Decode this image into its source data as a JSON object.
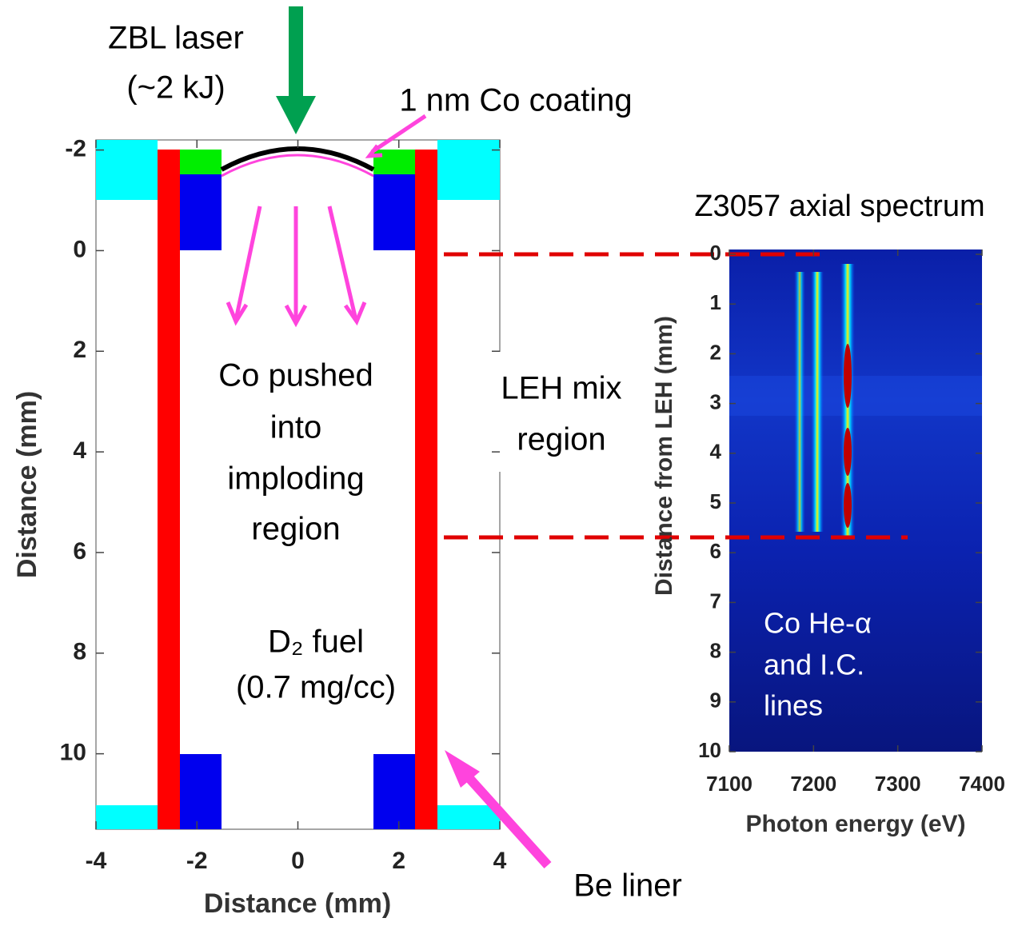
{
  "left_panel": {
    "xlabel": "Distance (mm)",
    "ylabel": "Distance (mm)",
    "xlim": [
      -4,
      4
    ],
    "ylim": [
      -2.2,
      11.5
    ],
    "xticks": [
      -4,
      -2,
      0,
      2,
      4
    ],
    "yticks": [
      -2,
      0,
      2,
      4,
      6,
      8,
      10
    ],
    "laser": [
      "ZBL laser",
      "(~2 kJ)"
    ],
    "coating": "1 nm Co coating",
    "pushed": [
      "Co pushed",
      "into",
      "imploding",
      "region"
    ],
    "fuel": [
      "D₂ fuel",
      "(0.7 mg/cc)"
    ],
    "mix": [
      "LEH mix",
      "region"
    ],
    "liner": "Be liner"
  },
  "right_panel": {
    "title": "Z3057 axial spectrum",
    "xlabel": "Photon energy (eV)",
    "ylabel": "Distance from LEH (mm)",
    "xlim": [
      7100,
      7400
    ],
    "ylim": [
      0,
      10
    ],
    "xticks": [
      7100,
      7200,
      7300,
      7400
    ],
    "yticks": [
      0,
      1,
      2,
      3,
      4,
      5,
      6,
      7,
      8,
      9,
      10
    ],
    "annotation": [
      "Co He-α",
      "and I.C.",
      "lines"
    ]
  }
}
